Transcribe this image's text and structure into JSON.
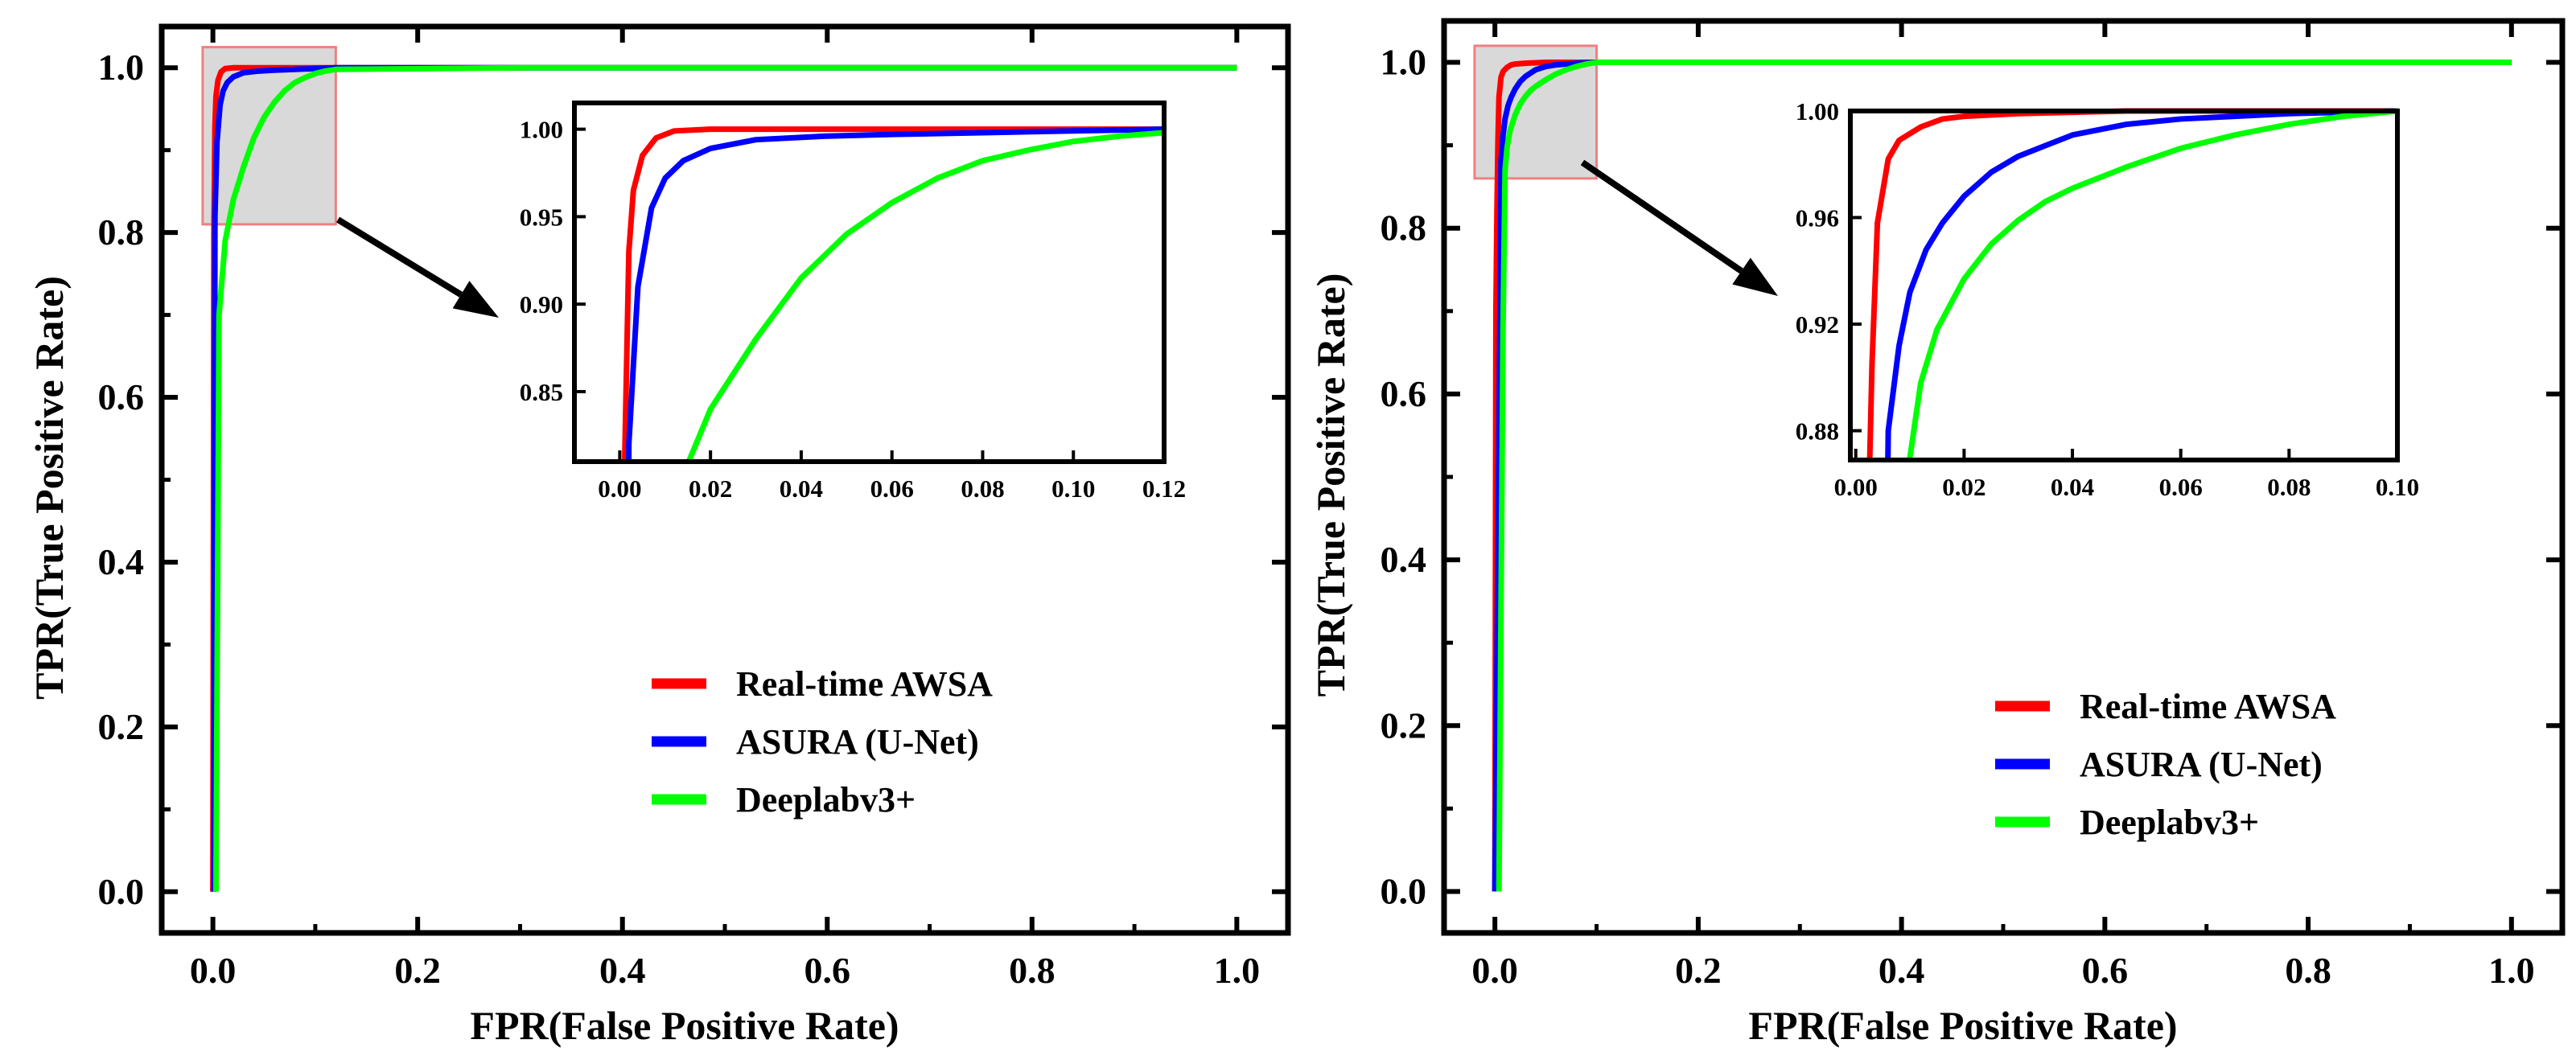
{
  "chart_data": [
    {
      "type": "line",
      "xlabel": "FPR(False Positive Rate)",
      "ylabel": "TPR(True Positive Rate)",
      "xlim": [
        -0.05,
        1.05
      ],
      "ylim": [
        -0.05,
        1.05
      ],
      "x_ticks": [
        "0.0",
        "0.2",
        "0.4",
        "0.6",
        "0.8",
        "1.0"
      ],
      "y_ticks": [
        "0.0",
        "0.2",
        "0.4",
        "0.6",
        "0.8",
        "1.0"
      ],
      "legend": {
        "position": "lower-right"
      },
      "series": [
        {
          "name": "Real-time AWSA",
          "color": "#ff0000",
          "x": [
            0,
            0.001,
            0.002,
            0.003,
            0.005,
            0.008,
            0.012,
            0.02,
            0.05,
            0.12,
            0.3,
            1.0
          ],
          "y": [
            0,
            0.8,
            0.93,
            0.965,
            0.985,
            0.995,
            0.999,
            1.0,
            1.0,
            1.0,
            1.0,
            1.0
          ]
        },
        {
          "name": "ASURA (U-Net)",
          "color": "#0000ff",
          "x": [
            0.001,
            0.002,
            0.004,
            0.007,
            0.01,
            0.014,
            0.02,
            0.03,
            0.045,
            0.06,
            0.08,
            0.1,
            0.12,
            0.3,
            1.0
          ],
          "y": [
            0,
            0.82,
            0.91,
            0.955,
            0.972,
            0.982,
            0.989,
            0.994,
            0.996,
            0.997,
            0.998,
            0.999,
            1.0,
            1.0,
            1.0
          ]
        },
        {
          "name": "Deeplabv3+",
          "color": "#00ff00",
          "x": [
            0.003,
            0.006,
            0.012,
            0.02,
            0.03,
            0.04,
            0.05,
            0.06,
            0.07,
            0.08,
            0.09,
            0.1,
            0.11,
            0.12,
            0.3,
            1.0
          ],
          "y": [
            0,
            0.7,
            0.79,
            0.84,
            0.88,
            0.915,
            0.94,
            0.958,
            0.972,
            0.982,
            0.988,
            0.993,
            0.996,
            0.998,
            1.0,
            1.0
          ]
        }
      ],
      "inset": {
        "xlim": [
          -0.01,
          0.12
        ],
        "ylim": [
          0.81,
          1.015
        ],
        "x_ticks": [
          "0.00",
          "0.02",
          "0.04",
          "0.06",
          "0.08",
          "0.10",
          "0.12"
        ],
        "y_ticks": [
          "0.85",
          "0.90",
          "0.95",
          "1.00"
        ]
      }
    },
    {
      "type": "line",
      "xlabel": "FPR(False Positive Rate)",
      "ylabel": "TPR(True Positive Rate)",
      "xlim": [
        -0.05,
        1.05
      ],
      "ylim": [
        -0.05,
        1.05
      ],
      "x_ticks": [
        "0.0",
        "0.2",
        "0.4",
        "0.6",
        "0.8",
        "1.0"
      ],
      "y_ticks": [
        "0.0",
        "0.2",
        "0.4",
        "0.6",
        "0.8",
        "1.0"
      ],
      "legend": {
        "position": "lower-right"
      },
      "series": [
        {
          "name": "Real-time AWSA",
          "color": "#ff0000",
          "x": [
            0,
            0.001,
            0.002,
            0.003,
            0.004,
            0.006,
            0.008,
            0.012,
            0.016,
            0.02,
            0.03,
            0.05,
            0.1,
            1.0
          ],
          "y": [
            0,
            0.7,
            0.82,
            0.905,
            0.958,
            0.982,
            0.989,
            0.994,
            0.997,
            0.998,
            0.999,
            1.0,
            1.0,
            1.0
          ]
        },
        {
          "name": "ASURA (U-Net)",
          "color": "#0000ff",
          "x": [
            0,
            0.004,
            0.006,
            0.008,
            0.01,
            0.013,
            0.016,
            0.02,
            0.025,
            0.03,
            0.04,
            0.05,
            0.06,
            0.07,
            0.08,
            0.1,
            1.0
          ],
          "y": [
            0,
            0.55,
            0.88,
            0.912,
            0.932,
            0.948,
            0.958,
            0.968,
            0.977,
            0.983,
            0.991,
            0.995,
            0.997,
            0.998,
            0.999,
            1.0,
            1.0
          ]
        },
        {
          "name": "Deeplabv3+",
          "color": "#00ff00",
          "x": [
            0.004,
            0.008,
            0.01,
            0.012,
            0.015,
            0.02,
            0.025,
            0.03,
            0.035,
            0.04,
            0.05,
            0.06,
            0.07,
            0.08,
            0.09,
            0.1,
            1.0
          ],
          "y": [
            0,
            0.68,
            0.87,
            0.898,
            0.918,
            0.937,
            0.95,
            0.959,
            0.966,
            0.971,
            0.979,
            0.986,
            0.991,
            0.995,
            0.998,
            1.0,
            1.0
          ]
        }
      ],
      "inset": {
        "xlim": [
          -0.001,
          0.1
        ],
        "ylim": [
          0.869,
          1.0
        ],
        "x_ticks": [
          "0.00",
          "0.02",
          "0.04",
          "0.06",
          "0.08",
          "0.10"
        ],
        "y_ticks": [
          "0.88",
          "0.92",
          "0.96",
          "1.00"
        ]
      }
    }
  ]
}
